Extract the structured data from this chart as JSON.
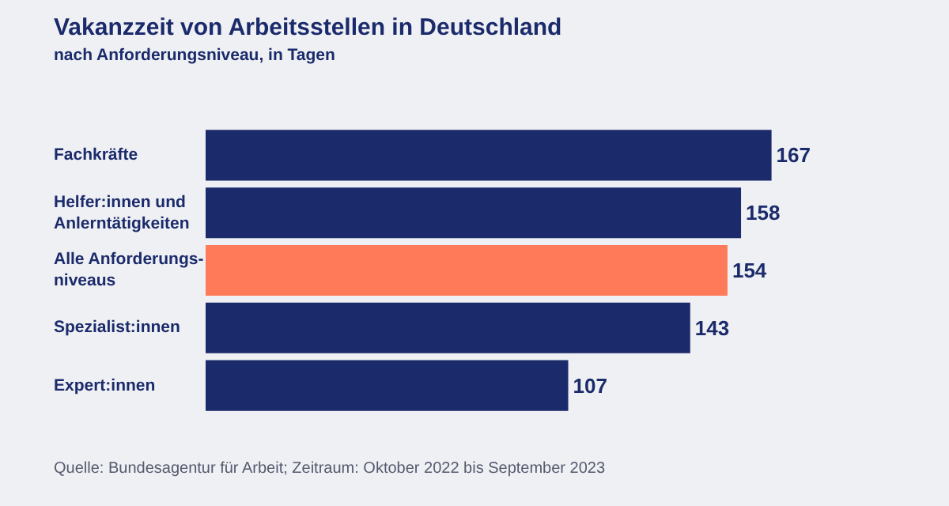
{
  "chart_data": {
    "type": "bar",
    "orientation": "horizontal",
    "title": "Vakanzzeit von Arbeitsstellen in Deutschland",
    "subtitle": "nach Anforderungsniveau, in Tagen",
    "categories": [
      "Fachkräfte",
      "Helfer:innen und\nAnlerntätigkeiten",
      "Alle Anforderungs-\nniveaus",
      "Spezialist:innen",
      "Expert:innen"
    ],
    "values": [
      167,
      158,
      154,
      143,
      107
    ],
    "colors": [
      "#1b2a6b",
      "#1b2a6b",
      "#ff7a59",
      "#1b2a6b",
      "#1b2a6b"
    ],
    "data_labels": true,
    "legend": false,
    "annotations": [
      "Quelle: Bundesagentur für Arbeit; Zeitraum: Oktober 2022 bis September 2023"
    ]
  }
}
